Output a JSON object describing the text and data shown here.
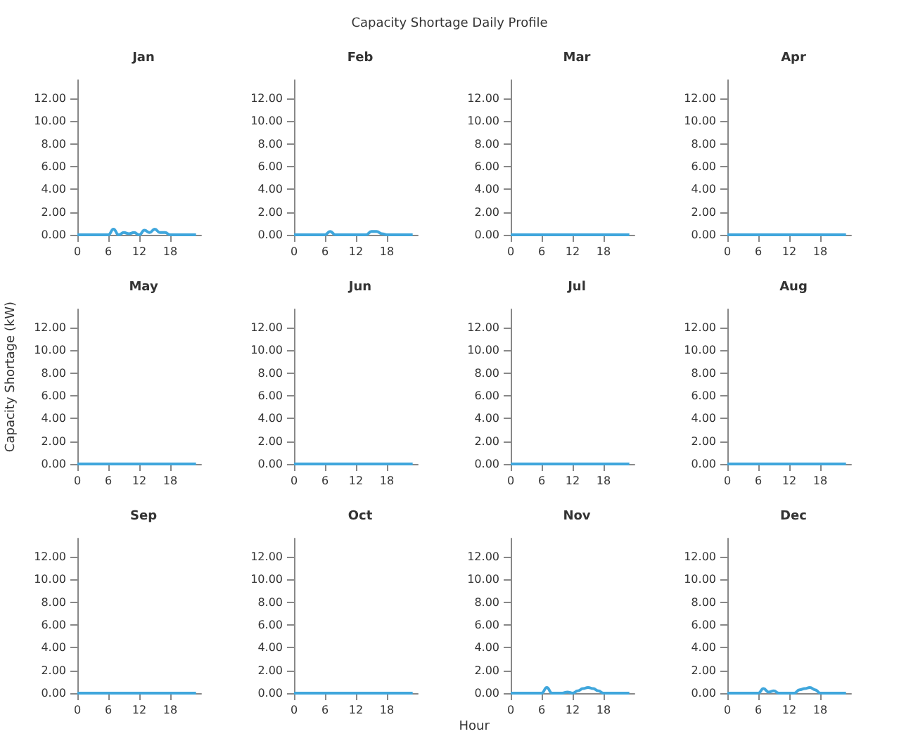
{
  "chart_data": [
    {
      "type": "line",
      "title": "Jan",
      "annotations": [
        "Capacity Shortage Daily Profile"
      ],
      "x": [
        0,
        1,
        2,
        3,
        4,
        5,
        6,
        7,
        8,
        9,
        10,
        11,
        12,
        13,
        14,
        15,
        16,
        17,
        18,
        19,
        20,
        21,
        22,
        23
      ],
      "values": [
        0,
        0,
        0,
        0,
        0,
        0,
        0,
        0.5,
        0,
        0.2,
        0.1,
        0.2,
        0,
        0.4,
        0.2,
        0.5,
        0.2,
        0.2,
        0,
        0,
        0,
        0,
        0,
        0
      ],
      "color": "#3fa6dc",
      "xlim": [
        0,
        24
      ],
      "xticks": [
        0,
        6,
        12,
        18
      ],
      "ylim": [
        0,
        13.6
      ],
      "yticks": [
        {
          "value": 0,
          "label": "0.00"
        },
        {
          "value": 2,
          "label": "2.00"
        },
        {
          "value": 4,
          "label": "4.00"
        },
        {
          "value": 6,
          "label": "6.00"
        },
        {
          "value": 8,
          "label": "8.00"
        },
        {
          "value": 10,
          "label": "10.00"
        },
        {
          "value": 12,
          "label": "12.00"
        }
      ]
    },
    {
      "type": "line",
      "title": "Feb",
      "x": [
        0,
        1,
        2,
        3,
        4,
        5,
        6,
        7,
        8,
        9,
        10,
        11,
        12,
        13,
        14,
        15,
        16,
        17,
        18,
        19,
        20,
        21,
        22,
        23
      ],
      "values": [
        0,
        0,
        0,
        0,
        0,
        0,
        0,
        0.3,
        0,
        0,
        0,
        0,
        0,
        0,
        0,
        0.3,
        0.3,
        0.1,
        0,
        0,
        0,
        0,
        0,
        0
      ],
      "color": "#3fa6dc",
      "xlim": [
        0,
        24
      ],
      "xticks": [
        0,
        6,
        12,
        18
      ],
      "ylim": [
        0,
        13.6
      ],
      "yticks": [
        {
          "value": 0,
          "label": "0.00"
        },
        {
          "value": 2,
          "label": "2.00"
        },
        {
          "value": 4,
          "label": "4.00"
        },
        {
          "value": 6,
          "label": "6.00"
        },
        {
          "value": 8,
          "label": "8.00"
        },
        {
          "value": 10,
          "label": "10.00"
        },
        {
          "value": 12,
          "label": "12.00"
        }
      ]
    },
    {
      "type": "line",
      "title": "Mar",
      "x": [
        0,
        1,
        2,
        3,
        4,
        5,
        6,
        7,
        8,
        9,
        10,
        11,
        12,
        13,
        14,
        15,
        16,
        17,
        18,
        19,
        20,
        21,
        22,
        23
      ],
      "values": [
        0,
        0,
        0,
        0,
        0,
        0,
        0,
        0,
        0,
        0,
        0,
        0,
        0,
        0,
        0,
        0,
        0,
        0,
        0,
        0,
        0,
        0,
        0,
        0
      ],
      "color": "#3fa6dc",
      "xlim": [
        0,
        24
      ],
      "xticks": [
        0,
        6,
        12,
        18
      ],
      "ylim": [
        0,
        13.6
      ],
      "yticks": [
        {
          "value": 0,
          "label": "0.00"
        },
        {
          "value": 2,
          "label": "2.00"
        },
        {
          "value": 4,
          "label": "4.00"
        },
        {
          "value": 6,
          "label": "6.00"
        },
        {
          "value": 8,
          "label": "8.00"
        },
        {
          "value": 10,
          "label": "10.00"
        },
        {
          "value": 12,
          "label": "12.00"
        }
      ]
    },
    {
      "type": "line",
      "title": "Apr",
      "x": [
        0,
        1,
        2,
        3,
        4,
        5,
        6,
        7,
        8,
        9,
        10,
        11,
        12,
        13,
        14,
        15,
        16,
        17,
        18,
        19,
        20,
        21,
        22,
        23
      ],
      "values": [
        0,
        0,
        0,
        0,
        0,
        0,
        0,
        0,
        0,
        0,
        0,
        0,
        0,
        0,
        0,
        0,
        0,
        0,
        0,
        0,
        0,
        0,
        0,
        0
      ],
      "color": "#3fa6dc",
      "xlim": [
        0,
        24
      ],
      "xticks": [
        0,
        6,
        12,
        18
      ],
      "ylim": [
        0,
        13.6
      ],
      "yticks": [
        {
          "value": 0,
          "label": "0.00"
        },
        {
          "value": 2,
          "label": "2.00"
        },
        {
          "value": 4,
          "label": "4.00"
        },
        {
          "value": 6,
          "label": "6.00"
        },
        {
          "value": 8,
          "label": "8.00"
        },
        {
          "value": 10,
          "label": "10.00"
        },
        {
          "value": 12,
          "label": "12.00"
        }
      ]
    },
    {
      "type": "line",
      "title": "May",
      "ylabel": "Capacity Shortage (kW)",
      "x": [
        0,
        1,
        2,
        3,
        4,
        5,
        6,
        7,
        8,
        9,
        10,
        11,
        12,
        13,
        14,
        15,
        16,
        17,
        18,
        19,
        20,
        21,
        22,
        23
      ],
      "values": [
        0,
        0,
        0,
        0,
        0,
        0,
        0,
        0,
        0,
        0,
        0,
        0,
        0,
        0,
        0,
        0,
        0,
        0,
        0,
        0,
        0,
        0,
        0,
        0
      ],
      "color": "#3fa6dc",
      "xlim": [
        0,
        24
      ],
      "xticks": [
        0,
        6,
        12,
        18
      ],
      "ylim": [
        0,
        13.6
      ],
      "yticks": [
        {
          "value": 0,
          "label": "0.00"
        },
        {
          "value": 2,
          "label": "2.00"
        },
        {
          "value": 4,
          "label": "4.00"
        },
        {
          "value": 6,
          "label": "6.00"
        },
        {
          "value": 8,
          "label": "8.00"
        },
        {
          "value": 10,
          "label": "10.00"
        },
        {
          "value": 12,
          "label": "12.00"
        }
      ]
    },
    {
      "type": "line",
      "title": "Jun",
      "x": [
        0,
        1,
        2,
        3,
        4,
        5,
        6,
        7,
        8,
        9,
        10,
        11,
        12,
        13,
        14,
        15,
        16,
        17,
        18,
        19,
        20,
        21,
        22,
        23
      ],
      "values": [
        0,
        0,
        0,
        0,
        0,
        0,
        0,
        0,
        0,
        0,
        0,
        0,
        0,
        0,
        0,
        0,
        0,
        0,
        0,
        0,
        0,
        0,
        0,
        0
      ],
      "color": "#3fa6dc",
      "xlim": [
        0,
        24
      ],
      "xticks": [
        0,
        6,
        12,
        18
      ],
      "ylim": [
        0,
        13.6
      ],
      "yticks": [
        {
          "value": 0,
          "label": "0.00"
        },
        {
          "value": 2,
          "label": "2.00"
        },
        {
          "value": 4,
          "label": "4.00"
        },
        {
          "value": 6,
          "label": "6.00"
        },
        {
          "value": 8,
          "label": "8.00"
        },
        {
          "value": 10,
          "label": "10.00"
        },
        {
          "value": 12,
          "label": "12.00"
        }
      ]
    },
    {
      "type": "line",
      "title": "Jul",
      "x": [
        0,
        1,
        2,
        3,
        4,
        5,
        6,
        7,
        8,
        9,
        10,
        11,
        12,
        13,
        14,
        15,
        16,
        17,
        18,
        19,
        20,
        21,
        22,
        23
      ],
      "values": [
        0,
        0,
        0,
        0,
        0,
        0,
        0,
        0,
        0,
        0,
        0,
        0,
        0,
        0,
        0,
        0,
        0,
        0,
        0,
        0,
        0,
        0,
        0,
        0
      ],
      "color": "#3fa6dc",
      "xlim": [
        0,
        24
      ],
      "xticks": [
        0,
        6,
        12,
        18
      ],
      "ylim": [
        0,
        13.6
      ],
      "yticks": [
        {
          "value": 0,
          "label": "0.00"
        },
        {
          "value": 2,
          "label": "2.00"
        },
        {
          "value": 4,
          "label": "4.00"
        },
        {
          "value": 6,
          "label": "6.00"
        },
        {
          "value": 8,
          "label": "8.00"
        },
        {
          "value": 10,
          "label": "10.00"
        },
        {
          "value": 12,
          "label": "12.00"
        }
      ]
    },
    {
      "type": "line",
      "title": "Aug",
      "x": [
        0,
        1,
        2,
        3,
        4,
        5,
        6,
        7,
        8,
        9,
        10,
        11,
        12,
        13,
        14,
        15,
        16,
        17,
        18,
        19,
        20,
        21,
        22,
        23
      ],
      "values": [
        0,
        0,
        0,
        0,
        0,
        0,
        0,
        0,
        0,
        0,
        0,
        0,
        0,
        0,
        0,
        0,
        0,
        0,
        0,
        0,
        0,
        0,
        0,
        0
      ],
      "color": "#3fa6dc",
      "xlim": [
        0,
        24
      ],
      "xticks": [
        0,
        6,
        12,
        18
      ],
      "ylim": [
        0,
        13.6
      ],
      "yticks": [
        {
          "value": 0,
          "label": "0.00"
        },
        {
          "value": 2,
          "label": "2.00"
        },
        {
          "value": 4,
          "label": "4.00"
        },
        {
          "value": 6,
          "label": "6.00"
        },
        {
          "value": 8,
          "label": "8.00"
        },
        {
          "value": 10,
          "label": "10.00"
        },
        {
          "value": 12,
          "label": "12.00"
        }
      ]
    },
    {
      "type": "line",
      "title": "Sep",
      "x": [
        0,
        1,
        2,
        3,
        4,
        5,
        6,
        7,
        8,
        9,
        10,
        11,
        12,
        13,
        14,
        15,
        16,
        17,
        18,
        19,
        20,
        21,
        22,
        23
      ],
      "values": [
        0,
        0,
        0,
        0,
        0,
        0,
        0,
        0,
        0,
        0,
        0,
        0,
        0,
        0,
        0,
        0,
        0,
        0,
        0,
        0,
        0,
        0,
        0,
        0
      ],
      "color": "#3fa6dc",
      "xlim": [
        0,
        24
      ],
      "xticks": [
        0,
        6,
        12,
        18
      ],
      "ylim": [
        0,
        13.6
      ],
      "yticks": [
        {
          "value": 0,
          "label": "0.00"
        },
        {
          "value": 2,
          "label": "2.00"
        },
        {
          "value": 4,
          "label": "4.00"
        },
        {
          "value": 6,
          "label": "6.00"
        },
        {
          "value": 8,
          "label": "8.00"
        },
        {
          "value": 10,
          "label": "10.00"
        },
        {
          "value": 12,
          "label": "12.00"
        }
      ]
    },
    {
      "type": "line",
      "title": "Oct",
      "xlabel": "Hour",
      "x": [
        0,
        1,
        2,
        3,
        4,
        5,
        6,
        7,
        8,
        9,
        10,
        11,
        12,
        13,
        14,
        15,
        16,
        17,
        18,
        19,
        20,
        21,
        22,
        23
      ],
      "values": [
        0,
        0,
        0,
        0,
        0,
        0,
        0,
        0,
        0,
        0,
        0,
        0,
        0,
        0,
        0,
        0,
        0,
        0,
        0,
        0,
        0,
        0,
        0,
        0
      ],
      "color": "#3fa6dc",
      "xlim": [
        0,
        24
      ],
      "xticks": [
        0,
        6,
        12,
        18
      ],
      "ylim": [
        0,
        13.6
      ],
      "yticks": [
        {
          "value": 0,
          "label": "0.00"
        },
        {
          "value": 2,
          "label": "2.00"
        },
        {
          "value": 4,
          "label": "4.00"
        },
        {
          "value": 6,
          "label": "6.00"
        },
        {
          "value": 8,
          "label": "8.00"
        },
        {
          "value": 10,
          "label": "10.00"
        },
        {
          "value": 12,
          "label": "12.00"
        }
      ]
    },
    {
      "type": "line",
      "title": "Nov",
      "x": [
        0,
        1,
        2,
        3,
        4,
        5,
        6,
        7,
        8,
        9,
        10,
        11,
        12,
        13,
        14,
        15,
        16,
        17,
        18,
        19,
        20,
        21,
        22,
        23
      ],
      "values": [
        0,
        0,
        0,
        0,
        0,
        0,
        0,
        0.5,
        0,
        0,
        0,
        0.1,
        0,
        0.2,
        0.4,
        0.5,
        0.4,
        0.2,
        0,
        0,
        0,
        0,
        0,
        0
      ],
      "color": "#3fa6dc",
      "xlim": [
        0,
        24
      ],
      "xticks": [
        0,
        6,
        12,
        18
      ],
      "ylim": [
        0,
        13.6
      ],
      "yticks": [
        {
          "value": 0,
          "label": "0.00"
        },
        {
          "value": 2,
          "label": "2.00"
        },
        {
          "value": 4,
          "label": "4.00"
        },
        {
          "value": 6,
          "label": "6.00"
        },
        {
          "value": 8,
          "label": "8.00"
        },
        {
          "value": 10,
          "label": "10.00"
        },
        {
          "value": 12,
          "label": "12.00"
        }
      ]
    },
    {
      "type": "line",
      "title": "Dec",
      "x": [
        0,
        1,
        2,
        3,
        4,
        5,
        6,
        7,
        8,
        9,
        10,
        11,
        12,
        13,
        14,
        15,
        16,
        17,
        18,
        19,
        20,
        21,
        22,
        23
      ],
      "values": [
        0,
        0,
        0,
        0,
        0,
        0,
        0,
        0.4,
        0.1,
        0.2,
        0,
        0,
        0,
        0,
        0.3,
        0.4,
        0.5,
        0.3,
        0,
        0,
        0,
        0,
        0,
        0
      ],
      "color": "#3fa6dc",
      "xlim": [
        0,
        24
      ],
      "xticks": [
        0,
        6,
        12,
        18
      ],
      "ylim": [
        0,
        13.6
      ],
      "yticks": [
        {
          "value": 0,
          "label": "0.00"
        },
        {
          "value": 2,
          "label": "2.00"
        },
        {
          "value": 4,
          "label": "4.00"
        },
        {
          "value": 6,
          "label": "6.00"
        },
        {
          "value": 8,
          "label": "8.00"
        },
        {
          "value": 10,
          "label": "10.00"
        },
        {
          "value": 12,
          "label": "12.00"
        }
      ]
    }
  ]
}
